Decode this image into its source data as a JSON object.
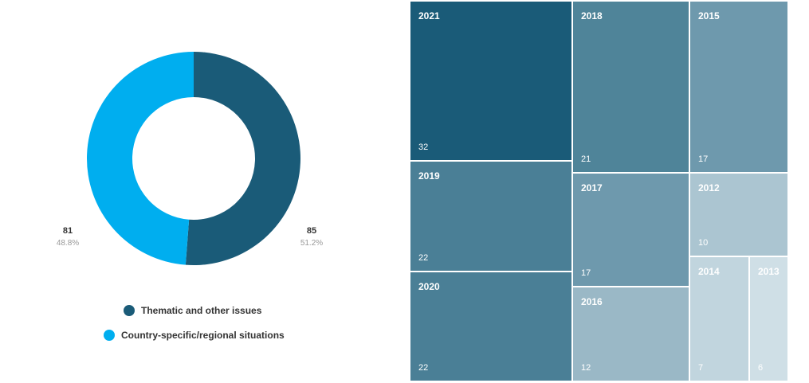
{
  "chart_data": [
    {
      "type": "pie",
      "variant": "donut",
      "series": [
        {
          "name": "Thematic and other issues",
          "value": 85,
          "percent": "51.2%",
          "color": "#1a5b78"
        },
        {
          "name": "Country-specific/regional situations",
          "value": 81,
          "percent": "48.8%",
          "color": "#00aeef"
        }
      ],
      "legend_placement": "bottom"
    },
    {
      "type": "treemap",
      "items": [
        {
          "label": "2021",
          "value": 32,
          "color": "#1a5b78"
        },
        {
          "label": "2019",
          "value": 22,
          "color": "#4a7f96"
        },
        {
          "label": "2020",
          "value": 22,
          "color": "#4a7f96"
        },
        {
          "label": "2018",
          "value": 21,
          "color": "#4f8499"
        },
        {
          "label": "2015",
          "value": 17,
          "color": "#6e99ad"
        },
        {
          "label": "2017",
          "value": 17,
          "color": "#6e99ad"
        },
        {
          "label": "2016",
          "value": 12,
          "color": "#9ab8c6"
        },
        {
          "label": "2012",
          "value": 10,
          "color": "#abc5d1"
        },
        {
          "label": "2014",
          "value": 7,
          "color": "#c1d5de"
        },
        {
          "label": "2013",
          "value": 6,
          "color": "#cfdfe6"
        }
      ]
    }
  ]
}
